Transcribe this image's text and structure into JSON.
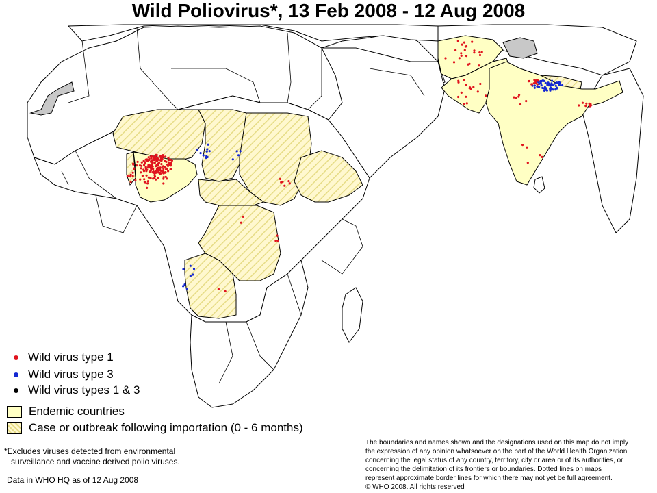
{
  "title": "Wild Poliovirus*, 13 Feb 2008 - 12 Aug 2008",
  "colors": {
    "endemic": "#ffffc4",
    "importation_fill": "#fff6c8",
    "importation_hatch": "#e8df7a",
    "border": "#000000",
    "non_study": "#c8c8c8",
    "type1": "#e0141e",
    "type3": "#1428d2",
    "type13": "#000000",
    "land": "#ffffff"
  },
  "legend": {
    "type1": "Wild virus type 1",
    "type3": "Wild virus type 3",
    "type13": "Wild virus types 1 & 3",
    "endemic": "Endemic countries",
    "importation": "Case or outbreak following importation (0 - 6 months)"
  },
  "footnote": {
    "line1": "*Excludes viruses detected from environmental",
    "line2": "surveillance and vaccine derived polio viruses."
  },
  "data_as_of": "Data in WHO HQ as of 12 Aug 2008",
  "disclaimer": {
    "l1": "The boundaries and names shown and the designations used on this map do not imply",
    "l2": "the expression of any opinion whatsoever on the part of the World Health Organization",
    "l3": "concerning the legal status of any country, territory, city or area or of its authorities, or",
    "l4": "concerning the delimitation of its frontiers or boundaries. Dotted lines on maps",
    "l5": "represent approximate border lines for which there may not yet be full agreement.",
    "l6": "© WHO 2008. All rights reserved"
  },
  "map_regions": [
    {
      "name": "nigeria",
      "status": "endemic"
    },
    {
      "name": "afghanistan",
      "status": "endemic"
    },
    {
      "name": "pakistan",
      "status": "endemic"
    },
    {
      "name": "india",
      "status": "endemic"
    },
    {
      "name": "niger",
      "status": "importation"
    },
    {
      "name": "chad",
      "status": "importation"
    },
    {
      "name": "sudan",
      "status": "importation"
    },
    {
      "name": "ethiopia",
      "status": "importation"
    },
    {
      "name": "car",
      "status": "importation"
    },
    {
      "name": "dr-congo",
      "status": "importation"
    },
    {
      "name": "angola",
      "status": "importation"
    },
    {
      "name": "nepal",
      "status": "importation"
    },
    {
      "name": "benin",
      "status": "importation"
    },
    {
      "name": "western-sahara",
      "status": "not-applicable"
    },
    {
      "name": "jammu-kashmir",
      "status": "not-applicable"
    }
  ]
}
